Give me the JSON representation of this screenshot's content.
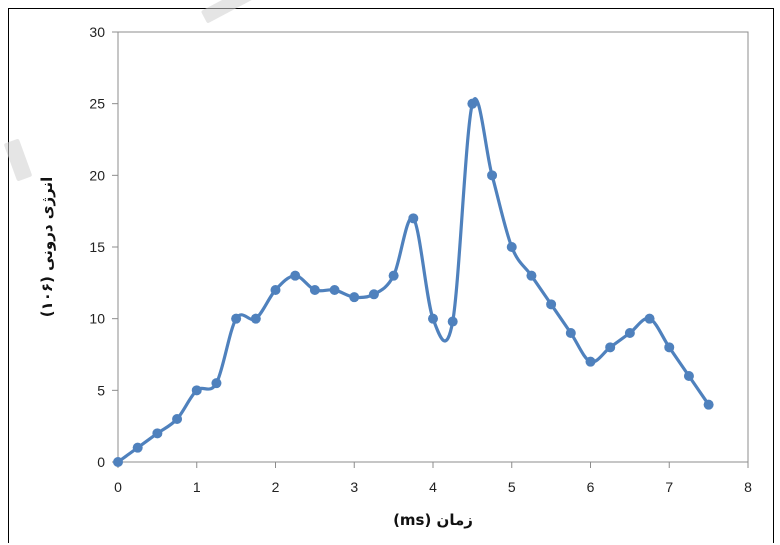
{
  "chart_data": {
    "type": "line",
    "title": "",
    "xlabel": "زمان (ms)",
    "ylabel": "انرژی درونی (۱۰۶)",
    "xlim": [
      0,
      8
    ],
    "ylim": [
      0,
      30
    ],
    "x_ticks": [
      0,
      1,
      2,
      3,
      4,
      5,
      6,
      7,
      8
    ],
    "y_ticks": [
      0,
      5,
      10,
      15,
      20,
      25,
      30
    ],
    "grid": false,
    "legend": "none",
    "series": [
      {
        "color": "#4f81bd",
        "marker": "circle",
        "smooth": true,
        "x": [
          0,
          0.25,
          0.5,
          0.75,
          1,
          1.25,
          1.5,
          1.75,
          2,
          2.25,
          2.5,
          2.75,
          3,
          3.25,
          3.5,
          3.75,
          4,
          4.25,
          4.5,
          4.75,
          5,
          5.25,
          5.5,
          5.75,
          6,
          6.25,
          6.5,
          6.75,
          7,
          7.25,
          7.5
        ],
        "y": [
          0,
          1,
          2,
          3,
          5,
          5.5,
          10,
          10,
          12,
          13,
          12,
          12,
          11.5,
          11.7,
          13,
          17,
          10,
          9.8,
          25,
          20,
          15,
          13,
          11,
          9,
          7,
          8,
          9,
          10,
          8,
          6,
          4
        ]
      }
    ]
  }
}
